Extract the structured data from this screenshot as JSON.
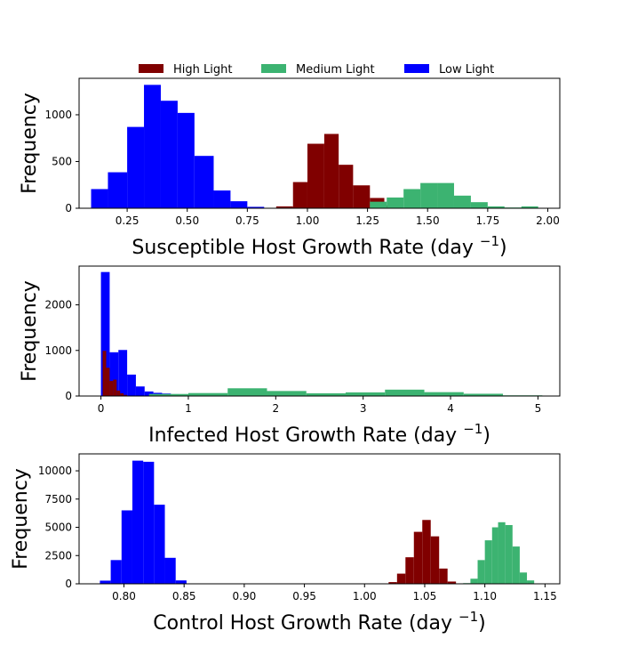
{
  "legend": {
    "placement": "top-center",
    "entries": [
      {
        "label": "High Light",
        "color": "#800000"
      },
      {
        "label": "Medium Light",
        "color": "#3cb371"
      },
      {
        "label": "Low Light",
        "color": "#0000ff"
      }
    ]
  },
  "chart_data": [
    {
      "type": "bar",
      "xlabel": "Susceptible Host Growth Rate (day",
      "xlabel_sup": "−1",
      "xlabel_close": ")",
      "ylabel": "Frequency",
      "xlim": [
        0.05,
        2.05
      ],
      "ylim": [
        0,
        1390
      ],
      "xticks": [
        0.25,
        0.5,
        0.75,
        1.0,
        1.25,
        1.5,
        1.75,
        2.0
      ],
      "xtick_labels": [
        "0.25",
        "0.50",
        "0.75",
        "1.00",
        "1.25",
        "1.50",
        "1.75",
        "2.00"
      ],
      "yticks": [
        0,
        500,
        1000
      ],
      "ytick_labels": [
        "0",
        "500",
        "1000"
      ],
      "series": [
        {
          "name": "Low Light",
          "color": "#0000ff",
          "edges": [
            0.1,
            0.17,
            0.25,
            0.32,
            0.39,
            0.46,
            0.53,
            0.61,
            0.68,
            0.75,
            0.82
          ],
          "values": [
            205,
            385,
            870,
            1320,
            1150,
            1020,
            560,
            190,
            75,
            15
          ]
        },
        {
          "name": "High Light",
          "color": "#800000",
          "edges": [
            0.87,
            0.94,
            1.0,
            1.07,
            1.13,
            1.19,
            1.26,
            1.32,
            1.38
          ],
          "values": [
            20,
            280,
            690,
            795,
            465,
            245,
            110,
            30
          ]
        },
        {
          "name": "Medium Light",
          "color": "#3cb371",
          "edges": [
            1.26,
            1.33,
            1.4,
            1.47,
            1.54,
            1.61,
            1.68,
            1.75,
            1.82,
            1.89,
            1.96
          ],
          "values": [
            70,
            115,
            205,
            270,
            270,
            135,
            65,
            20,
            8,
            20
          ]
        }
      ]
    },
    {
      "type": "bar",
      "xlabel": "Infected Host Growth Rate (day",
      "xlabel_sup": "−1",
      "xlabel_close": ")",
      "ylabel": "Frequency",
      "xlim": [
        -0.25,
        5.25
      ],
      "ylim": [
        0,
        2850
      ],
      "xticks": [
        0,
        1,
        2,
        3,
        4,
        5
      ],
      "xtick_labels": [
        "0",
        "1",
        "2",
        "3",
        "4",
        "5"
      ],
      "yticks": [
        0,
        1000,
        2000
      ],
      "ytick_labels": [
        "0",
        "1000",
        "2000"
      ],
      "series": [
        {
          "name": "Low Light",
          "color": "#0000ff",
          "edges": [
            0.0,
            0.1,
            0.2,
            0.3,
            0.4,
            0.5,
            0.6,
            0.7,
            0.8,
            0.9,
            1.0
          ],
          "values": [
            2720,
            960,
            1010,
            470,
            210,
            100,
            70,
            55,
            40,
            20
          ]
        },
        {
          "name": "High Light",
          "color": "#800000",
          "edges": [
            0.02,
            0.06,
            0.1,
            0.14,
            0.18,
            0.22,
            0.26,
            0.3
          ],
          "values": [
            990,
            620,
            330,
            360,
            120,
            60,
            25
          ]
        },
        {
          "name": "Medium Light",
          "color": "#3cb371",
          "edges": [
            0.55,
            1.0,
            1.45,
            1.9,
            2.35,
            2.8,
            3.25,
            3.7,
            4.15,
            4.6,
            5.05
          ],
          "values": [
            45,
            65,
            170,
            110,
            60,
            80,
            140,
            85,
            50,
            15
          ]
        }
      ]
    },
    {
      "type": "bar",
      "xlabel": "Control Host Growth Rate (day",
      "xlabel_sup": "−1",
      "xlabel_close": ")",
      "ylabel": "Frequency",
      "xlim": [
        0.7627,
        1.1623
      ],
      "ylim": [
        0,
        11500
      ],
      "xticks": [
        0.8,
        0.85,
        0.9,
        0.95,
        1.0,
        1.05,
        1.1,
        1.15
      ],
      "xtick_labels": [
        "0.80",
        "0.85",
        "0.90",
        "0.95",
        "1.00",
        "1.05",
        "1.10",
        "1.15"
      ],
      "yticks": [
        0,
        2500,
        5000,
        7500,
        10000
      ],
      "ytick_labels": [
        "0",
        "2500",
        "5000",
        "7500",
        "10000"
      ],
      "series": [
        {
          "name": "Low Light",
          "color": "#0000ff",
          "edges": [
            0.78,
            0.789,
            0.798,
            0.807,
            0.816,
            0.825,
            0.834,
            0.843,
            0.852,
            0.861
          ],
          "values": [
            280,
            2100,
            6500,
            10900,
            10800,
            7000,
            2300,
            300,
            20
          ]
        },
        {
          "name": "High Light",
          "color": "#800000",
          "edges": [
            1.02,
            1.027,
            1.034,
            1.041,
            1.048,
            1.055,
            1.062,
            1.069,
            1.076
          ],
          "values": [
            150,
            900,
            2350,
            4600,
            5650,
            4200,
            1350,
            200
          ]
        },
        {
          "name": "Medium Light",
          "color": "#3cb371",
          "edges": [
            1.082,
            1.088,
            1.094,
            1.1,
            1.106,
            1.111,
            1.117,
            1.123,
            1.129,
            1.135,
            1.141
          ],
          "values": [
            60,
            450,
            2100,
            3850,
            5000,
            5450,
            5200,
            3300,
            1000,
            300
          ]
        }
      ]
    }
  ]
}
